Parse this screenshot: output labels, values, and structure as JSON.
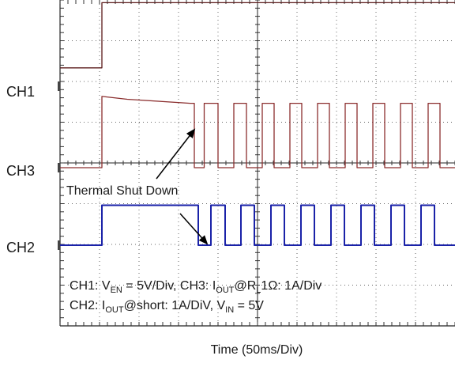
{
  "chart_data": {
    "type": "line",
    "title": "",
    "xlabel": "Time (50ms/Div)",
    "x_divisions": 10,
    "y_divisions": 8,
    "grid": true,
    "channel_labels": {
      "ch1": "CH1",
      "ch3": "CH3",
      "ch2": "CH2"
    },
    "annotation": "Thermal Shut Down",
    "settings_line1": {
      "p1": "CH1: V",
      "s1": "EN",
      "p2": " = 5V/Div, CH3: I",
      "s2": "OUT",
      "p3": "@R",
      "s3": "L",
      "p4": "1Ω: 1A/Div"
    },
    "settings_line2": {
      "p1": "CH2: I",
      "s1": "OUT",
      "p2": "@short: 1A/DiV, V",
      "s2": "IN",
      "p3": " = 5V"
    },
    "series": [
      {
        "name": "CH1",
        "color": "#5a1a1a",
        "points": [
          [
            0,
            0.45
          ],
          [
            1.06,
            0.45
          ],
          [
            1.06,
            2.05
          ],
          [
            10,
            2.05
          ]
        ]
      },
      {
        "name": "CH3",
        "color": "#8b2e2e",
        "points": [
          [
            0,
            0
          ],
          [
            1.06,
            0
          ],
          [
            1.06,
            1.75
          ],
          [
            1.7,
            1.68
          ],
          [
            3.3,
            1.58
          ],
          [
            3.4,
            1.58
          ],
          [
            3.4,
            0
          ],
          [
            3.65,
            0
          ],
          [
            3.65,
            1.58
          ],
          [
            4.0,
            1.58
          ],
          [
            4.0,
            0
          ],
          [
            4.4,
            0
          ],
          [
            4.4,
            1.58
          ],
          [
            4.72,
            1.58
          ],
          [
            4.72,
            0
          ],
          [
            5.12,
            0
          ],
          [
            5.12,
            1.58
          ],
          [
            5.42,
            1.58
          ],
          [
            5.42,
            0
          ],
          [
            5.82,
            0
          ],
          [
            5.82,
            1.58
          ],
          [
            6.12,
            1.58
          ],
          [
            6.12,
            0
          ],
          [
            6.52,
            0
          ],
          [
            6.52,
            1.58
          ],
          [
            6.82,
            1.58
          ],
          [
            6.82,
            0
          ],
          [
            7.22,
            0
          ],
          [
            7.22,
            1.58
          ],
          [
            7.52,
            1.58
          ],
          [
            7.52,
            0
          ],
          [
            7.92,
            0
          ],
          [
            7.92,
            1.58
          ],
          [
            8.22,
            1.58
          ],
          [
            8.22,
            0
          ],
          [
            8.62,
            0
          ],
          [
            8.62,
            1.58
          ],
          [
            8.92,
            1.58
          ],
          [
            8.92,
            0
          ],
          [
            9.32,
            0
          ],
          [
            9.32,
            1.58
          ],
          [
            9.62,
            1.58
          ],
          [
            9.62,
            0
          ],
          [
            10,
            0
          ]
        ]
      },
      {
        "name": "CH2",
        "color": "#1a22a8",
        "points": [
          [
            0,
            0
          ],
          [
            1.06,
            0
          ],
          [
            1.06,
            0.98
          ],
          [
            3.5,
            0.98
          ],
          [
            3.5,
            0
          ],
          [
            3.82,
            0
          ],
          [
            3.82,
            0.98
          ],
          [
            4.18,
            0.98
          ],
          [
            4.18,
            0
          ],
          [
            4.58,
            0
          ],
          [
            4.58,
            0.98
          ],
          [
            4.92,
            0.98
          ],
          [
            4.92,
            0
          ],
          [
            5.34,
            0
          ],
          [
            5.34,
            0.98
          ],
          [
            5.68,
            0.98
          ],
          [
            5.68,
            0
          ],
          [
            6.1,
            0
          ],
          [
            6.1,
            0.98
          ],
          [
            6.44,
            0.98
          ],
          [
            6.44,
            0
          ],
          [
            6.86,
            0
          ],
          [
            6.86,
            0.98
          ],
          [
            7.2,
            0.98
          ],
          [
            7.2,
            0
          ],
          [
            7.62,
            0
          ],
          [
            7.62,
            0.98
          ],
          [
            7.96,
            0.98
          ],
          [
            7.96,
            0
          ],
          [
            8.38,
            0
          ],
          [
            8.38,
            0.98
          ],
          [
            8.72,
            0.98
          ],
          [
            8.72,
            0
          ],
          [
            9.14,
            0
          ],
          [
            9.14,
            0.98
          ],
          [
            9.48,
            0.98
          ],
          [
            9.48,
            0
          ],
          [
            10,
            0
          ]
        ]
      }
    ]
  }
}
